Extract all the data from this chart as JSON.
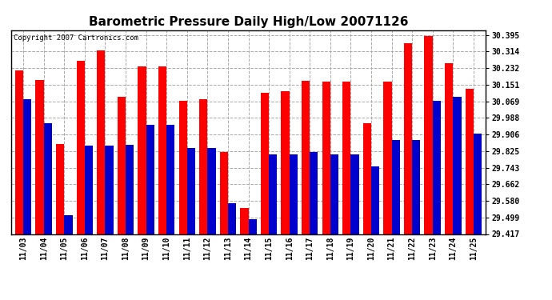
{
  "title": "Barometric Pressure Daily High/Low 20071126",
  "copyright": "Copyright 2007 Cartronics.com",
  "dates": [
    "11/03",
    "11/04",
    "11/05",
    "11/06",
    "11/07",
    "11/08",
    "11/09",
    "11/10",
    "11/11",
    "11/12",
    "11/13",
    "11/14",
    "11/15",
    "11/16",
    "11/17",
    "11/18",
    "11/19",
    "11/20",
    "11/21",
    "11/22",
    "11/23",
    "11/24",
    "11/25"
  ],
  "highs": [
    30.22,
    30.175,
    29.86,
    30.27,
    30.32,
    30.09,
    30.24,
    30.24,
    30.07,
    30.08,
    29.82,
    29.545,
    30.11,
    30.12,
    30.17,
    30.165,
    30.165,
    29.96,
    30.165,
    30.355,
    30.39,
    30.255,
    30.13
  ],
  "lows": [
    30.08,
    29.96,
    29.51,
    29.85,
    29.85,
    29.855,
    29.955,
    29.955,
    29.84,
    29.84,
    29.57,
    29.49,
    29.81,
    29.81,
    29.82,
    29.81,
    29.81,
    29.75,
    29.88,
    29.88,
    30.07,
    30.09,
    29.91
  ],
  "bar_color_high": "#ff0000",
  "bar_color_low": "#0000cc",
  "bg_color": "#ffffff",
  "grid_color": "#aaaaaa",
  "yticks": [
    29.417,
    29.499,
    29.58,
    29.662,
    29.743,
    29.825,
    29.906,
    29.988,
    30.069,
    30.151,
    30.232,
    30.314,
    30.395
  ],
  "ymin": 29.417,
  "ymax": 30.42,
  "title_fontsize": 11,
  "tick_fontsize": 7,
  "figwidth": 6.9,
  "figheight": 3.75,
  "dpi": 100
}
